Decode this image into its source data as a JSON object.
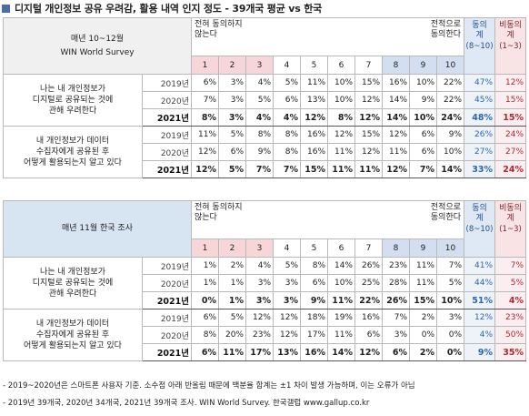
{
  "title": "디지털 개인정보 공유 우려감, 활용 내역 인지 정도 - 39개국 평균 vs 한국",
  "accent_color": "#4a6fa5",
  "sections": [
    {
      "survey": [
        "매년 10~12월",
        "WIN World Survey"
      ],
      "scale_left": [
        "전혀 동의하지",
        "않는다"
      ],
      "scale_right": [
        "전적으로",
        "동의한다"
      ],
      "scale_numbers": [
        "1",
        "2",
        "3",
        "4",
        "5",
        "6",
        "7",
        "8",
        "9",
        "10"
      ],
      "agg_agree": [
        "동의",
        "계",
        "(8~10)"
      ],
      "agg_disagree": [
        "비동의",
        "계",
        "(1~3)"
      ],
      "questions": [
        {
          "text": [
            "나는 내 개인정보가",
            "디지털로 공유되는 것에",
            "관해 우려한다"
          ],
          "rows": [
            {
              "year": "2019년",
              "values": [
                "6%",
                "3%",
                "4%",
                "5%",
                "11%",
                "10%",
                "15%",
                "16%",
                "10%",
                "22%"
              ],
              "agree": "47%",
              "disagree": "12%"
            },
            {
              "year": "2020년",
              "values": [
                "7%",
                "3%",
                "5%",
                "6%",
                "13%",
                "10%",
                "12%",
                "14%",
                "9%",
                "22%"
              ],
              "agree": "45%",
              "disagree": "15%"
            },
            {
              "year": "2021년",
              "values": [
                "8%",
                "3%",
                "4%",
                "4%",
                "12%",
                "8%",
                "12%",
                "14%",
                "10%",
                "24%"
              ],
              "agree": "48%",
              "disagree": "15%"
            }
          ]
        },
        {
          "text": [
            "내 개인정보가 데이터",
            "수집자에게 공유된 후",
            "어떻게 활용되는지 알고 있다"
          ],
          "rows": [
            {
              "year": "2019년",
              "values": [
                "11%",
                "5%",
                "8%",
                "8%",
                "16%",
                "12%",
                "15%",
                "12%",
                "6%",
                "9%"
              ],
              "agree": "26%",
              "disagree": "24%"
            },
            {
              "year": "2020년",
              "values": [
                "12%",
                "6%",
                "9%",
                "8%",
                "16%",
                "11%",
                "12%",
                "11%",
                "6%",
                "10%"
              ],
              "agree": "27%",
              "disagree": "27%"
            },
            {
              "year": "2021년",
              "values": [
                "12%",
                "5%",
                "7%",
                "7%",
                "15%",
                "11%",
                "11%",
                "12%",
                "7%",
                "14%"
              ],
              "agree": "33%",
              "disagree": "24%"
            }
          ]
        }
      ]
    },
    {
      "survey": [
        "매년 11월 한국 조사"
      ],
      "scale_left": [
        "전혀 동의하지",
        "않는다"
      ],
      "scale_right": [
        "전적으로",
        "동의한다"
      ],
      "scale_numbers": [
        "1",
        "2",
        "3",
        "4",
        "5",
        "6",
        "7",
        "8",
        "9",
        "10"
      ],
      "agg_agree": [
        "동의",
        "계",
        "(8~10)"
      ],
      "agg_disagree": [
        "비동의",
        "계",
        "(1~3)"
      ],
      "questions": [
        {
          "text": [
            "나는 내 개인정보가",
            "디지털로 공유되는 것에",
            "관해 우려한다"
          ],
          "rows": [
            {
              "year": "2019년",
              "values": [
                "1%",
                "2%",
                "4%",
                "5%",
                "8%",
                "14%",
                "26%",
                "23%",
                "11%",
                "7%"
              ],
              "agree": "41%",
              "disagree": "7%"
            },
            {
              "year": "2020년",
              "values": [
                "1%",
                "1%",
                "3%",
                "3%",
                "6%",
                "10%",
                "25%",
                "28%",
                "11%",
                "5%"
              ],
              "agree": "44%",
              "disagree": "5%"
            },
            {
              "year": "2021년",
              "values": [
                "0%",
                "1%",
                "3%",
                "3%",
                "9%",
                "11%",
                "22%",
                "26%",
                "15%",
                "10%"
              ],
              "agree": "51%",
              "disagree": "4%"
            }
          ]
        },
        {
          "text": [
            "내 개인정보가 데이터",
            "수집자에게 공유된 후",
            "어떻게 활용되는지 알고 있다"
          ],
          "rows": [
            {
              "year": "2019년",
              "values": [
                "6%",
                "5%",
                "12%",
                "12%",
                "18%",
                "19%",
                "16%",
                "7%",
                "2%",
                "3%"
              ],
              "agree": "12%",
              "disagree": "23%"
            },
            {
              "year": "2020년",
              "values": [
                "8%",
                "20%",
                "23%",
                "12%",
                "17%",
                "11%",
                "6%",
                "3%",
                "0%",
                "0%"
              ],
              "agree": "4%",
              "disagree": "50%"
            },
            {
              "year": "2021년",
              "values": [
                "6%",
                "11%",
                "17%",
                "13%",
                "16%",
                "14%",
                "12%",
                "6%",
                "2%",
                "0%"
              ],
              "agree": "9%",
              "disagree": "35%"
            }
          ]
        }
      ]
    }
  ],
  "notes": [
    "- 2019~2020년은 스마트폰 사용자 기준. 소수점 아래 반올림 때문에 백분율 합계는 ±1 차이 발생 가능하며, 이는 오류가 아님",
    "- 2019년 39개국, 2020년 34개국, 2021년 39개국 조사. WIN World Survey. 한국갤럽 www.gallup.co.kr"
  ]
}
